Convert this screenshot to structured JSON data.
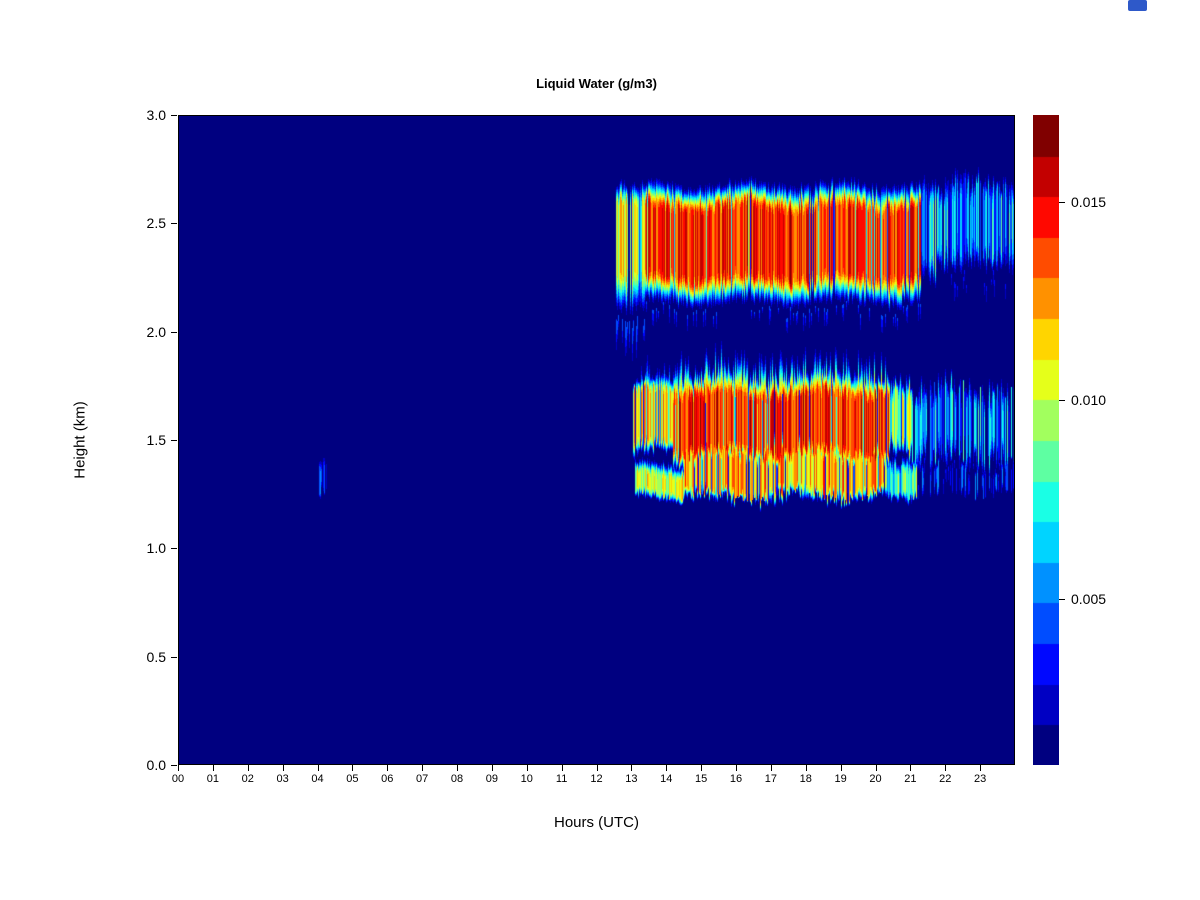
{
  "figure": {
    "background": "#ffffff",
    "artifact_color": "#2e59c9"
  },
  "chart_data": {
    "type": "heatmap",
    "title": "Liquid Water (g/m3)",
    "xlabel": "Hours (UTC)",
    "ylabel": "Height (km)",
    "x_range": [
      0,
      24
    ],
    "y_range": [
      0,
      3
    ],
    "x_ticks": [
      "00",
      "01",
      "02",
      "03",
      "04",
      "05",
      "06",
      "07",
      "08",
      "09",
      "10",
      "11",
      "12",
      "13",
      "14",
      "15",
      "16",
      "17",
      "18",
      "19",
      "20",
      "21",
      "22",
      "23"
    ],
    "y_ticks": [
      "0.0",
      "0.5",
      "1.0",
      "1.5",
      "2.0",
      "2.5",
      "3.0"
    ],
    "colormap": "jet",
    "levels": 16,
    "value_range": [
      0.0008,
      0.0172
    ],
    "background_value": 0,
    "grid": false,
    "legend": "colorbar-right",
    "colorbar": {
      "ticks": [
        "0.005",
        "0.010",
        "0.015"
      ],
      "tick_values": [
        0.005,
        0.01,
        0.015
      ]
    },
    "features": [
      {
        "name": "upper-cloud-onset",
        "x0": 12.55,
        "x1": 13.4,
        "yb": 2.06,
        "cb": 2.3,
        "ct": 2.6,
        "yt": 2.73,
        "peak": 0.0122,
        "aj": [
          0.7,
          1.08
        ],
        "yj": 0.03,
        "spikeDown": [
          0.5,
          0.3,
          0.0048
        ],
        "dropout": 0.15
      },
      {
        "name": "upper-cloud-core",
        "x0": 13.4,
        "x1": 21.3,
        "yb": 2.1,
        "cb": 2.27,
        "ct": 2.56,
        "yt": 2.71,
        "peak": 0.015,
        "aj": [
          0.82,
          1.08
        ],
        "yj": 0.03,
        "spikeDown": [
          0.2,
          0.16,
          0.004
        ],
        "spikeUp": [
          0.12,
          0.08,
          0.004
        ],
        "dropout": 0.08
      },
      {
        "name": "upper-cloud-decay",
        "x0": 21.3,
        "x1": 21.75,
        "yb": 2.2,
        "cb": 2.34,
        "ct": 2.6,
        "yt": 2.73,
        "peak": 0.0092,
        "aj": [
          0.5,
          1.15
        ],
        "yj": 0.05,
        "dropout": 0.2
      },
      {
        "name": "upper-cloud-tail",
        "x0": 21.75,
        "x1": 24,
        "yb": 2.26,
        "cb": 2.4,
        "ct": 2.6,
        "yt": 2.74,
        "peak": 0.0062,
        "aj": [
          0.35,
          1.4
        ],
        "yj": 0.07,
        "sparse": 0.93,
        "spikeDown": [
          0.15,
          0.2,
          0.003
        ]
      },
      {
        "name": "lower-cloud-onset",
        "x0": 13.05,
        "x1": 14.2,
        "yb": 1.41,
        "cb": 1.5,
        "ct": 1.71,
        "yt": 1.8,
        "peak": 0.0126,
        "aj": [
          0.72,
          1.1
        ],
        "yj": 0.03,
        "spikeUp": [
          0.3,
          0.14,
          0.007
        ],
        "dropout": 0.15
      },
      {
        "name": "lower-cloud-core",
        "x0": 14.2,
        "x1": 20.4,
        "yb": 1.36,
        "cb": 1.46,
        "ct": 1.7,
        "yt": 1.83,
        "peak": 0.0152,
        "aj": [
          0.8,
          1.08
        ],
        "yj": 0.035,
        "spikeUp": [
          0.45,
          0.16,
          0.0125
        ],
        "dropout": 0.09
      },
      {
        "name": "lower-cloud-decay",
        "x0": 20.4,
        "x1": 21.05,
        "yb": 1.4,
        "cb": 1.5,
        "ct": 1.68,
        "yt": 1.79,
        "peak": 0.0108,
        "aj": [
          0.55,
          1.1
        ],
        "yj": 0.05,
        "dropout": 0.2
      },
      {
        "name": "lower-cloud-tail",
        "x0": 21.05,
        "x1": 24,
        "yb": 1.37,
        "cb": 1.48,
        "ct": 1.68,
        "yt": 1.79,
        "peak": 0.006,
        "aj": [
          0.3,
          1.45
        ],
        "yj": 0.08,
        "sparse": 0.8,
        "spikeDown": [
          0.2,
          0.16,
          0.003
        ]
      },
      {
        "name": "low-strip-onset",
        "x0": 13.1,
        "x1": 14.5,
        "yb": 1.21,
        "cb": 1.26,
        "ct": 1.33,
        "yt": 1.41,
        "peak": 0.0116,
        "aj": [
          0.7,
          1.06
        ],
        "yj": 0.02
      },
      {
        "name": "low-strip-core",
        "x0": 14.5,
        "x1": 20.3,
        "yb": 1.21,
        "cb": 1.27,
        "ct": 1.43,
        "yt": 1.53,
        "peak": 0.0136,
        "aj": [
          0.7,
          1.08
        ],
        "yj": 0.04,
        "dropout": 0.16,
        "spikeUp": [
          0.2,
          0.1,
          0.008
        ]
      },
      {
        "name": "low-strip-decay",
        "x0": 20.3,
        "x1": 21.2,
        "yb": 1.22,
        "cb": 1.27,
        "ct": 1.36,
        "yt": 1.44,
        "peak": 0.0096,
        "aj": [
          0.5,
          1.1
        ],
        "yj": 0.03
      },
      {
        "name": "low-strip-tail",
        "x0": 21.2,
        "x1": 24,
        "yb": 1.23,
        "cb": 1.28,
        "ct": 1.34,
        "yt": 1.41,
        "peak": 0.0046,
        "aj": [
          0.3,
          1.25
        ],
        "yj": 0.04,
        "sparse": 0.45
      },
      {
        "name": "early-morning-blip",
        "x0": 4.05,
        "x1": 4.27,
        "yb": 1.22,
        "cb": 1.27,
        "ct": 1.35,
        "yt": 1.43,
        "peak": 0.0048,
        "aj": [
          0.4,
          1.15
        ],
        "yj": 0.03,
        "sparse": 0.6
      }
    ]
  }
}
